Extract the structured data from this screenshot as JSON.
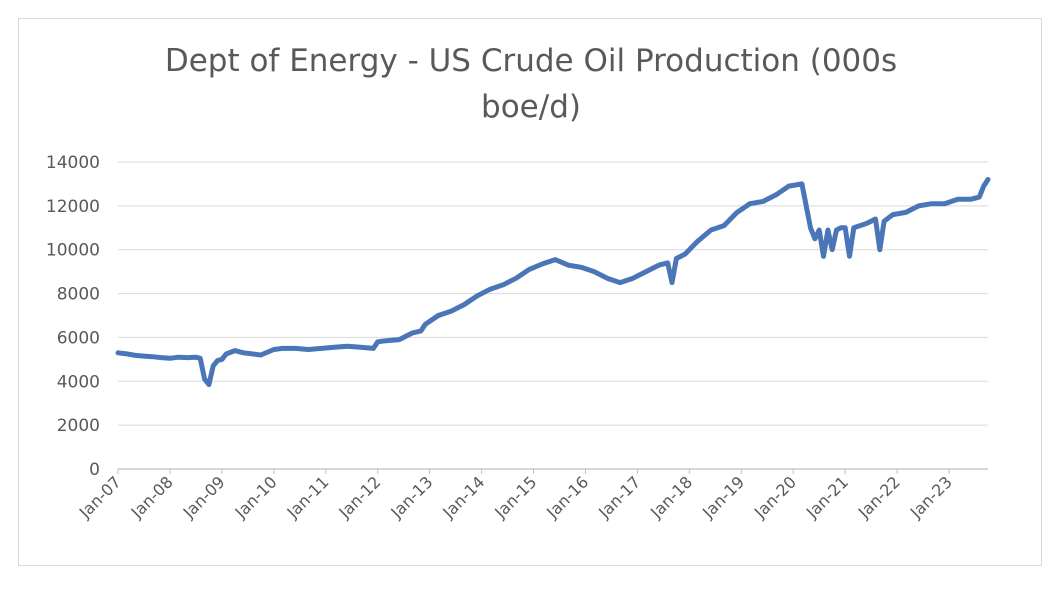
{
  "chart_data": {
    "type": "line",
    "title_line1": "Dept of Energy - US Crude Oil Production (000s",
    "title_line2": "boe/d)",
    "xlabel": "",
    "ylabel": "",
    "ylim": [
      0,
      14000
    ],
    "y_ticks": [
      0,
      2000,
      4000,
      6000,
      8000,
      10000,
      12000,
      14000
    ],
    "x_ticks": [
      "Jan-07",
      "Jan-08",
      "Jan-09",
      "Jan-10",
      "Jan-11",
      "Jan-12",
      "Jan-13",
      "Jan-14",
      "Jan-15",
      "Jan-16",
      "Jan-17",
      "Jan-18",
      "Jan-19",
      "Jan-20",
      "Jan-21",
      "Jan-22",
      "Jan-23"
    ],
    "xlim": [
      "2007-01",
      "2023-10"
    ],
    "grid": true,
    "legend": "none",
    "series_color": "#4a76b8",
    "series": [
      {
        "points": [
          [
            "2007-01",
            5300
          ],
          [
            "2007-03",
            5250
          ],
          [
            "2007-05",
            5180
          ],
          [
            "2007-07",
            5150
          ],
          [
            "2007-09",
            5120
          ],
          [
            "2007-11",
            5080
          ],
          [
            "2008-01",
            5050
          ],
          [
            "2008-03",
            5100
          ],
          [
            "2008-05",
            5080
          ],
          [
            "2008-07",
            5100
          ],
          [
            "2008-08",
            5050
          ],
          [
            "2008-09",
            4100
          ],
          [
            "2008-10",
            3850
          ],
          [
            "2008-11",
            4700
          ],
          [
            "2008-12",
            4950
          ],
          [
            "2009-01",
            5000
          ],
          [
            "2009-02",
            5250
          ],
          [
            "2009-04",
            5400
          ],
          [
            "2009-06",
            5300
          ],
          [
            "2009-08",
            5250
          ],
          [
            "2009-10",
            5200
          ],
          [
            "2010-01",
            5450
          ],
          [
            "2010-03",
            5500
          ],
          [
            "2010-06",
            5500
          ],
          [
            "2010-09",
            5450
          ],
          [
            "2010-12",
            5500
          ],
          [
            "2011-03",
            5550
          ],
          [
            "2011-06",
            5600
          ],
          [
            "2011-09",
            5550
          ],
          [
            "2011-12",
            5500
          ],
          [
            "2012-01",
            5800
          ],
          [
            "2012-03",
            5850
          ],
          [
            "2012-06",
            5900
          ],
          [
            "2012-09",
            6200
          ],
          [
            "2012-11",
            6300
          ],
          [
            "2012-12",
            6600
          ],
          [
            "2013-03",
            7000
          ],
          [
            "2013-06",
            7200
          ],
          [
            "2013-09",
            7500
          ],
          [
            "2013-12",
            7900
          ],
          [
            "2014-03",
            8200
          ],
          [
            "2014-06",
            8400
          ],
          [
            "2014-09",
            8700
          ],
          [
            "2014-12",
            9100
          ],
          [
            "2015-03",
            9350
          ],
          [
            "2015-06",
            9550
          ],
          [
            "2015-09",
            9300
          ],
          [
            "2015-12",
            9200
          ],
          [
            "2016-03",
            9000
          ],
          [
            "2016-06",
            8700
          ],
          [
            "2016-09",
            8500
          ],
          [
            "2016-12",
            8700
          ],
          [
            "2017-03",
            9000
          ],
          [
            "2017-06",
            9300
          ],
          [
            "2017-08",
            9400
          ],
          [
            "2017-09",
            8500
          ],
          [
            "2017-10",
            9600
          ],
          [
            "2017-12",
            9800
          ],
          [
            "2018-03",
            10400
          ],
          [
            "2018-06",
            10900
          ],
          [
            "2018-09",
            11100
          ],
          [
            "2018-12",
            11700
          ],
          [
            "2019-03",
            12100
          ],
          [
            "2019-06",
            12200
          ],
          [
            "2019-09",
            12500
          ],
          [
            "2019-12",
            12900
          ],
          [
            "2020-03",
            13000
          ],
          [
            "2020-04",
            12000
          ],
          [
            "2020-05",
            11000
          ],
          [
            "2020-06",
            10500
          ],
          [
            "2020-07",
            10900
          ],
          [
            "2020-08",
            9700
          ],
          [
            "2020-09",
            10900
          ],
          [
            "2020-10",
            10000
          ],
          [
            "2020-11",
            10900
          ],
          [
            "2020-12",
            11000
          ],
          [
            "2021-01",
            11000
          ],
          [
            "2021-02",
            9700
          ],
          [
            "2021-03",
            11000
          ],
          [
            "2021-06",
            11200
          ],
          [
            "2021-08",
            11400
          ],
          [
            "2021-09",
            10000
          ],
          [
            "2021-10",
            11300
          ],
          [
            "2021-12",
            11600
          ],
          [
            "2022-03",
            11700
          ],
          [
            "2022-06",
            12000
          ],
          [
            "2022-09",
            12100
          ],
          [
            "2022-12",
            12100
          ],
          [
            "2023-03",
            12300
          ],
          [
            "2023-06",
            12300
          ],
          [
            "2023-08",
            12400
          ],
          [
            "2023-09",
            12900
          ],
          [
            "2023-10",
            13200
          ]
        ]
      }
    ]
  }
}
